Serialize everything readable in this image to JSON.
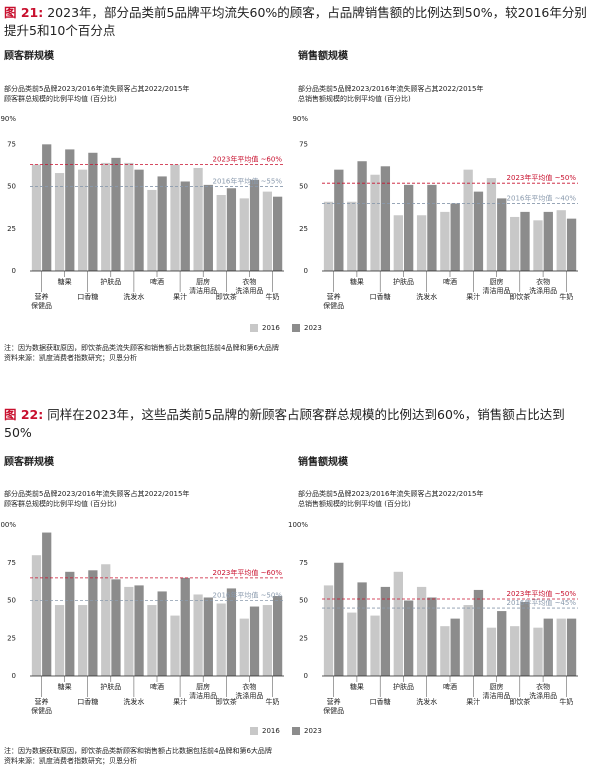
{
  "figures": [
    {
      "label": "图 21:",
      "title": "2023年，部分品类前5品牌平均流失60%的顾客，占品牌销售额的比例达到50%，较2016年分别提升5和10个百分点",
      "notes": [
        "注：因为数据获取原因，即饮茶品类流失顾客和销售额占比数据包括前4品牌和第6大品牌",
        "资料来源：凯度消费者指数研究；贝恩分析"
      ]
    },
    {
      "label": "图 22:",
      "title": "同样在2023年，这些品类前5品牌的新顾客占顾客群总规模的比例达到60%，销售额占比达到50%",
      "notes": [
        "注：因为数据获取原因，即饮茶品类新顾客和销售额占比数据包括前4品牌和第6大品牌",
        "资料来源：凯度消费者指数研究；贝恩分析"
      ]
    }
  ],
  "chart_data": [
    {
      "type": "bar",
      "title": "顾客群规模",
      "subtitle": [
        "部分品类前5品牌2023/2016年流失顾客占其2022/2015年",
        "顾客群总规模的比例平均值 (百分比)"
      ],
      "categories": [
        "营养保健品",
        "糖果",
        "口香糖",
        "护肤品",
        "洗发水",
        "啤酒",
        "果汁",
        "厨房清洁用品",
        "即饮茶",
        "衣物洗涤用品",
        "牛奶"
      ],
      "series": [
        {
          "name": "2016",
          "color": "#c8c8c8",
          "values": [
            63,
            58,
            60,
            64,
            64,
            48,
            63,
            61,
            45,
            43,
            47
          ]
        },
        {
          "name": "2023",
          "color": "#8c8c8c",
          "values": [
            75,
            72,
            70,
            67,
            60,
            56,
            53,
            51,
            49,
            54,
            44
          ]
        }
      ],
      "reference_lines": [
        {
          "value": 63,
          "label": "2023年平均值 ~60%",
          "color": "#c8102e"
        },
        {
          "value": 50,
          "label": "2016年平均值 ~55%",
          "color": "#8a9aad"
        }
      ],
      "ylim": [
        0,
        90
      ],
      "yticks": [
        0,
        25,
        50,
        75,
        {
          "value": 90,
          "label": "90%"
        }
      ],
      "grid": false
    },
    {
      "type": "bar",
      "title": "销售额规模",
      "subtitle": [
        "部分品类前5品牌2023/2016年流失顾客占其2022/2015年",
        "总销售额规模的比例平均值 (百分比)"
      ],
      "categories": [
        "营养保健品",
        "糖果",
        "口香糖",
        "护肤品",
        "洗发水",
        "啤酒",
        "果汁",
        "厨房清洁用品",
        "即饮茶",
        "衣物洗涤用品",
        "牛奶"
      ],
      "series": [
        {
          "name": "2016",
          "color": "#c8c8c8",
          "values": [
            41,
            41,
            57,
            33,
            33,
            35,
            60,
            55,
            32,
            30,
            36
          ]
        },
        {
          "name": "2023",
          "color": "#8c8c8c",
          "values": [
            60,
            65,
            62,
            51,
            51,
            40,
            47,
            43,
            35,
            35,
            31
          ]
        }
      ],
      "reference_lines": [
        {
          "value": 52,
          "label": "2023年平均值 ~50%",
          "color": "#c8102e"
        },
        {
          "value": 40,
          "label": "2016年平均值 ~40%",
          "color": "#8a9aad"
        }
      ],
      "ylim": [
        0,
        90
      ],
      "yticks": [
        0,
        25,
        50,
        75,
        {
          "value": 90,
          "label": "90%"
        }
      ],
      "grid": false
    },
    {
      "type": "bar",
      "title": "顾客群规模",
      "subtitle": [
        "部分品类前5品牌2023/2016年流失顾客占其2022/2015年",
        "顾客群总规模的比例平均值 (百分比)"
      ],
      "categories": [
        "营养保健品",
        "糖果",
        "口香糖",
        "护肤品",
        "洗发水",
        "啤酒",
        "果汁",
        "厨房清洁用品",
        "即饮茶",
        "衣物洗涤用品",
        "牛奶"
      ],
      "series": [
        {
          "name": "2016",
          "color": "#c8c8c8",
          "values": [
            80,
            47,
            47,
            74,
            59,
            47,
            40,
            54,
            48,
            38,
            47
          ]
        },
        {
          "name": "2023",
          "color": "#8c8c8c",
          "values": [
            95,
            69,
            70,
            64,
            60,
            56,
            65,
            52,
            58,
            46,
            53
          ]
        }
      ],
      "reference_lines": [
        {
          "value": 65,
          "label": "2023年平均值 ~60%",
          "color": "#c8102e"
        },
        {
          "value": 50,
          "label": "2016年平均值 ~50%",
          "color": "#8a9aad"
        }
      ],
      "ylim": [
        0,
        100
      ],
      "yticks": [
        0,
        25,
        50,
        75,
        {
          "value": 100,
          "label": "100%"
        }
      ],
      "grid": false
    },
    {
      "type": "bar",
      "title": "销售额规模",
      "subtitle": [
        "部分品类前5品牌2023/2016年流失顾客占其2022/2015年",
        "总销售额规模的比例平均值 (百分比)"
      ],
      "categories": [
        "营养保健品",
        "糖果",
        "口香糖",
        "护肤品",
        "洗发水",
        "啤酒",
        "果汁",
        "厨房清洁用品",
        "即饮茶",
        "衣物洗涤用品",
        "牛奶"
      ],
      "series": [
        {
          "name": "2016",
          "color": "#c8c8c8",
          "values": [
            60,
            42,
            40,
            69,
            59,
            33,
            47,
            32,
            33,
            32,
            38
          ]
        },
        {
          "name": "2023",
          "color": "#8c8c8c",
          "values": [
            75,
            62,
            59,
            50,
            52,
            38,
            57,
            43,
            49,
            38,
            38
          ]
        }
      ],
      "reference_lines": [
        {
          "value": 51,
          "label": "2023年平均值 ~50%",
          "color": "#c8102e"
        },
        {
          "value": 45,
          "label": "2016年平均值 ~45%",
          "color": "#8a9aad"
        }
      ],
      "ylim": [
        0,
        100
      ],
      "yticks": [
        0,
        25,
        50,
        75,
        {
          "value": 100,
          "label": "100%"
        }
      ],
      "grid": false
    }
  ]
}
